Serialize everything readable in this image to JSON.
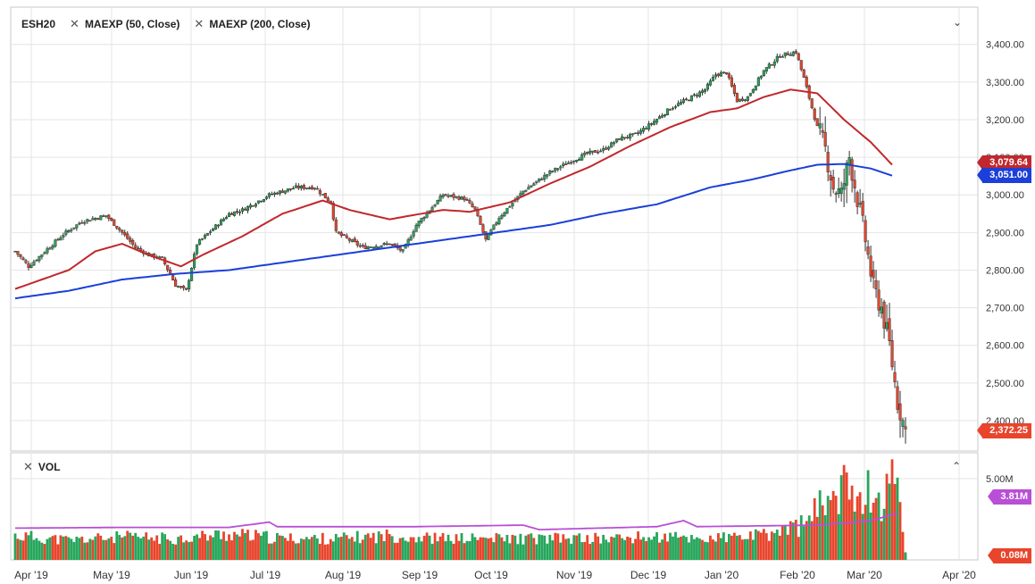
{
  "legend": {
    "symbol": "ESH20",
    "ma50": "MAEXP (50, Close)",
    "ma200": "MAEXP (200, Close)",
    "volume": "VOL"
  },
  "tags": {
    "ma50": "3,079.64",
    "ma200": "3,051.00",
    "last": "2,372.25",
    "vol_avg": "3.81M",
    "vol_last": "0.08M"
  },
  "colors": {
    "up": "#26a65b",
    "down": "#e8452c",
    "ma50": "#c0282d",
    "ma200": "#1b3fd8",
    "vol_ma": "#b84fd6"
  },
  "chart_data": [
    {
      "type": "candlestick",
      "title": "ESH20",
      "y_ticks": [
        "3,400.00",
        "3,300.00",
        "3,200.00",
        "3,100.00",
        "3,000.00",
        "2,900.00",
        "2,800.00",
        "2,700.00",
        "2,600.00",
        "2,500.00",
        "2,400.00"
      ],
      "ylim": [
        2350,
        3450
      ],
      "x_ticks": [
        "Apr '19",
        "May '19",
        "Jun '19",
        "Jul '19",
        "Aug '19",
        "Sep '19",
        "Oct '19",
        "Nov '19",
        "Dec '19",
        "Jan '20",
        "Feb '20",
        "Mar '20",
        "Apr '20"
      ],
      "close_keypoints": [
        [
          0,
          2850
        ],
        [
          5,
          2810
        ],
        [
          18,
          2895
        ],
        [
          25,
          2930
        ],
        [
          34,
          2945
        ],
        [
          40,
          2900
        ],
        [
          45,
          2860
        ],
        [
          50,
          2840
        ],
        [
          55,
          2830
        ],
        [
          60,
          2760
        ],
        [
          64,
          2745
        ],
        [
          68,
          2870
        ],
        [
          80,
          2950
        ],
        [
          85,
          2960
        ],
        [
          95,
          3000
        ],
        [
          105,
          3020
        ],
        [
          112,
          3020
        ],
        [
          118,
          2980
        ],
        [
          120,
          2900
        ],
        [
          125,
          2880
        ],
        [
          130,
          2860
        ],
        [
          140,
          2870
        ],
        [
          145,
          2850
        ],
        [
          150,
          2920
        ],
        [
          160,
          3000
        ],
        [
          168,
          2990
        ],
        [
          172,
          2960
        ],
        [
          176,
          2880
        ],
        [
          181,
          2940
        ],
        [
          190,
          3010
        ],
        [
          200,
          3060
        ],
        [
          208,
          3090
        ],
        [
          214,
          3110
        ],
        [
          220,
          3120
        ],
        [
          226,
          3150
        ],
        [
          232,
          3160
        ],
        [
          238,
          3190
        ],
        [
          245,
          3230
        ],
        [
          253,
          3260
        ],
        [
          258,
          3280
        ],
        [
          262,
          3320
        ],
        [
          266,
          3325
        ],
        [
          270,
          3250
        ],
        [
          274,
          3260
        ],
        [
          280,
          3330
        ],
        [
          286,
          3370
        ],
        [
          292,
          3380
        ],
        [
          295,
          3310
        ],
        [
          300,
          3180
        ],
        [
          303,
          3120
        ],
        [
          306,
          3020
        ],
        [
          309,
          3000
        ],
        [
          312,
          3100
        ],
        [
          315,
          2990
        ],
        [
          318,
          2880
        ],
        [
          321,
          2750
        ],
        [
          324,
          2700
        ],
        [
          327,
          2600
        ],
        [
          330,
          2450
        ],
        [
          333,
          2372.25
        ]
      ],
      "ma50_keypoints": [
        [
          0,
          2750
        ],
        [
          20,
          2800
        ],
        [
          30,
          2850
        ],
        [
          40,
          2870
        ],
        [
          50,
          2840
        ],
        [
          62,
          2810
        ],
        [
          70,
          2840
        ],
        [
          85,
          2890
        ],
        [
          100,
          2950
        ],
        [
          115,
          2985
        ],
        [
          125,
          2960
        ],
        [
          140,
          2935
        ],
        [
          160,
          2960
        ],
        [
          170,
          2955
        ],
        [
          185,
          2980
        ],
        [
          200,
          3030
        ],
        [
          215,
          3075
        ],
        [
          230,
          3130
        ],
        [
          245,
          3180
        ],
        [
          260,
          3220
        ],
        [
          270,
          3230
        ],
        [
          280,
          3260
        ],
        [
          290,
          3280
        ],
        [
          300,
          3270
        ],
        [
          310,
          3200
        ],
        [
          320,
          3140
        ],
        [
          328,
          3080
        ]
      ],
      "ma200_keypoints": [
        [
          0,
          2725
        ],
        [
          20,
          2745
        ],
        [
          40,
          2775
        ],
        [
          60,
          2790
        ],
        [
          80,
          2800
        ],
        [
          100,
          2820
        ],
        [
          120,
          2840
        ],
        [
          140,
          2860
        ],
        [
          160,
          2880
        ],
        [
          180,
          2900
        ],
        [
          200,
          2920
        ],
        [
          220,
          2950
        ],
        [
          240,
          2975
        ],
        [
          260,
          3020
        ],
        [
          275,
          3040
        ],
        [
          290,
          3065
        ],
        [
          300,
          3080
        ],
        [
          310,
          3082
        ],
        [
          320,
          3070
        ],
        [
          328,
          3051
        ]
      ],
      "annotations": {
        "ma50_last": "3,079.64",
        "ma200_last": "3,051.00",
        "last_price": "2,372.25"
      }
    },
    {
      "type": "bar",
      "title": "VOL",
      "y_ticks": [
        "5.00M"
      ],
      "ylim": [
        0,
        6.3
      ],
      "volume_level_keypoints": [
        [
          0,
          1.2
        ],
        [
          20,
          0.9
        ],
        [
          40,
          1.1
        ],
        [
          60,
          1.0
        ],
        [
          80,
          1.3
        ],
        [
          100,
          1.0
        ],
        [
          120,
          1.0
        ],
        [
          140,
          1.2
        ],
        [
          160,
          1.0
        ],
        [
          180,
          1.0
        ],
        [
          200,
          1.0
        ],
        [
          220,
          1.0
        ],
        [
          240,
          1.1
        ],
        [
          260,
          1.0
        ],
        [
          280,
          1.2
        ],
        [
          296,
          2.0
        ],
        [
          305,
          4.0
        ],
        [
          315,
          4.5
        ],
        [
          325,
          3.5
        ],
        [
          330,
          6.0
        ],
        [
          333,
          0.08
        ]
      ],
      "volume_ma_keypoints": [
        [
          0,
          1.7
        ],
        [
          40,
          1.75
        ],
        [
          80,
          1.75
        ],
        [
          95,
          2.1
        ],
        [
          98,
          1.8
        ],
        [
          150,
          1.8
        ],
        [
          190,
          1.9
        ],
        [
          196,
          1.6
        ],
        [
          240,
          1.8
        ],
        [
          250,
          2.2
        ],
        [
          255,
          1.8
        ],
        [
          300,
          1.9
        ],
        [
          320,
          2.2
        ],
        [
          330,
          2.7
        ]
      ],
      "annotations": {
        "avg": "3.81M",
        "last": "0.08M"
      }
    }
  ]
}
